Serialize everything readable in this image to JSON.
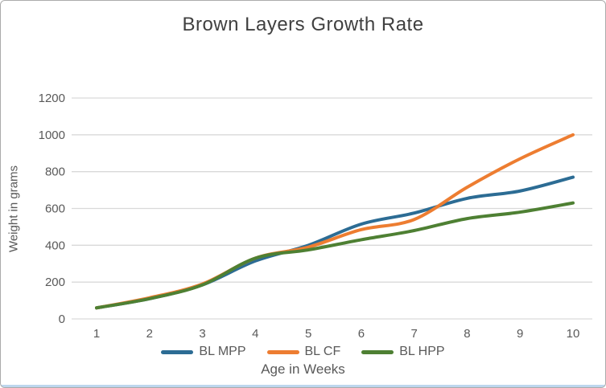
{
  "chart_data": {
    "type": "line",
    "title": "Brown Layers Growth Rate",
    "xlabel": "Age in Weeks",
    "ylabel": "Weight in grams",
    "x": [
      1,
      2,
      3,
      4,
      5,
      6,
      7,
      8,
      9,
      10
    ],
    "series": [
      {
        "name": "BL MPP",
        "color": "#2c6c94",
        "values": [
          60,
          110,
          185,
          315,
          400,
          515,
          575,
          655,
          695,
          770
        ]
      },
      {
        "name": "BL CF",
        "color": "#ed7d31",
        "values": [
          60,
          115,
          190,
          330,
          390,
          485,
          540,
          715,
          870,
          1000
        ]
      },
      {
        "name": "BL HPP",
        "color": "#4e8033",
        "values": [
          60,
          110,
          185,
          330,
          375,
          430,
          480,
          545,
          580,
          630
        ]
      }
    ],
    "ylim": [
      0,
      1200
    ],
    "yticks": [
      0,
      200,
      400,
      600,
      800,
      1000,
      1200
    ],
    "xticks": [
      1,
      2,
      3,
      4,
      5,
      6,
      7,
      8,
      9,
      10
    ],
    "grid": true,
    "legend_position": "bottom"
  },
  "style": {
    "grid_color": "#d9d9d9",
    "text_color": "#595959",
    "title_color": "#404040",
    "border_color": "#ababab",
    "accent_strip_color": "#bdd7ee"
  }
}
